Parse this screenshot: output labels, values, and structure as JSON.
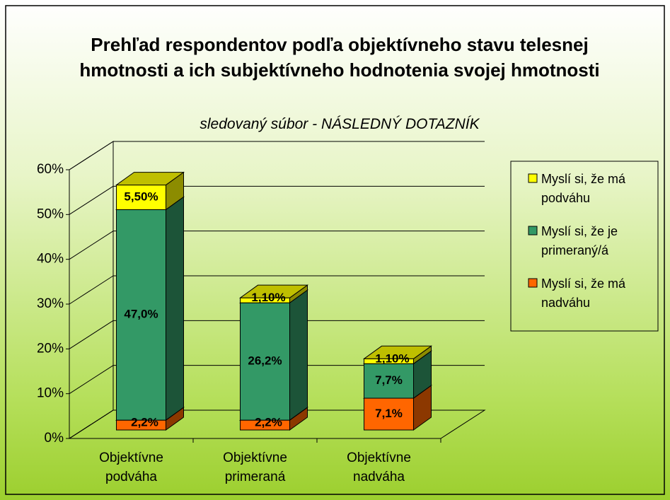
{
  "chart_data": {
    "type": "bar3d_stacked",
    "title": "Prehľad respondentov podľa objektívneho stavu telesnej hmotnosti a ich subjektívneho hodnotenia svojej hmotnosti",
    "subtitle": "sledovaný súbor - NÁSLEDNÝ DOTAZNÍK",
    "categories": [
      "Objektívne podváha",
      "Objektívne primeraná",
      "Objektívne nadváha"
    ],
    "series": [
      {
        "name": "Myslí si, že má nadváhu",
        "color": "#ff6600",
        "values": [
          2.2,
          2.2,
          7.1
        ],
        "value_labels": [
          "2,2%",
          "2,2%",
          "7,1%"
        ]
      },
      {
        "name": "Myslí si, že je primeraný/á",
        "color": "#339966",
        "values": [
          47.0,
          26.2,
          7.7
        ],
        "value_labels": [
          "47,0%",
          "26,2%",
          "7,7%"
        ]
      },
      {
        "name": "Myslí si, že má podváhu",
        "color": "#ffff00",
        "values": [
          5.5,
          1.1,
          1.1
        ],
        "value_labels": [
          "5,50%",
          "1,10%",
          "1,10%"
        ]
      }
    ],
    "ylim": [
      0,
      60
    ],
    "yticks": [
      {
        "value": 0,
        "label": "0%"
      },
      {
        "value": 10,
        "label": "10%"
      },
      {
        "value": 20,
        "label": "20%"
      },
      {
        "value": 30,
        "label": "30%"
      },
      {
        "value": 40,
        "label": "40%"
      },
      {
        "value": 50,
        "label": "50%"
      },
      {
        "value": 60,
        "label": "60%"
      }
    ],
    "grid": true,
    "legend": "right"
  }
}
